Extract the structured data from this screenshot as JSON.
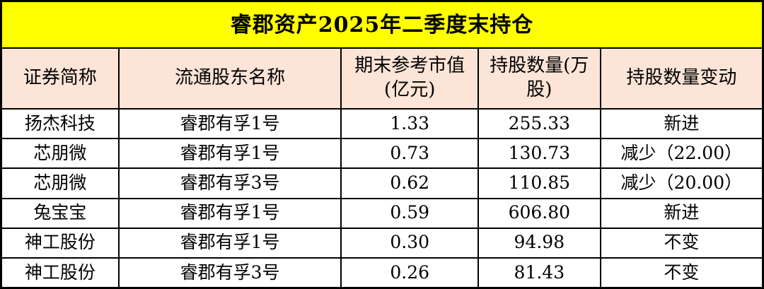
{
  "title": "睿郡资产2025年二季度末持仓",
  "colors": {
    "title_bg": "#FFFF00",
    "header_bg": "#FCE4D6",
    "row_bg": "#FFFFFF",
    "border": "#000000",
    "text": "#000000"
  },
  "table": {
    "headers": [
      "证券简称",
      "流通股东名称",
      "期末参考市值(亿元)",
      "持股数量(万股)",
      "持股数量变动"
    ],
    "rows": [
      [
        "扬杰科技",
        "睿郡有孚1号",
        "1.33",
        "255.33",
        "新进"
      ],
      [
        "芯朋微",
        "睿郡有孚1号",
        "0.73",
        "130.73",
        "减少（22.00）"
      ],
      [
        "芯朋微",
        "睿郡有孚3号",
        "0.62",
        "110.85",
        "减少（20.00）"
      ],
      [
        "兔宝宝",
        "睿郡有孚1号",
        "0.59",
        "606.80",
        "新进"
      ],
      [
        "神工股份",
        "睿郡有孚1号",
        "0.30",
        "94.98",
        "不变"
      ],
      [
        "神工股份",
        "睿郡有孚3号",
        "0.26",
        "81.43",
        "不变"
      ]
    ]
  }
}
